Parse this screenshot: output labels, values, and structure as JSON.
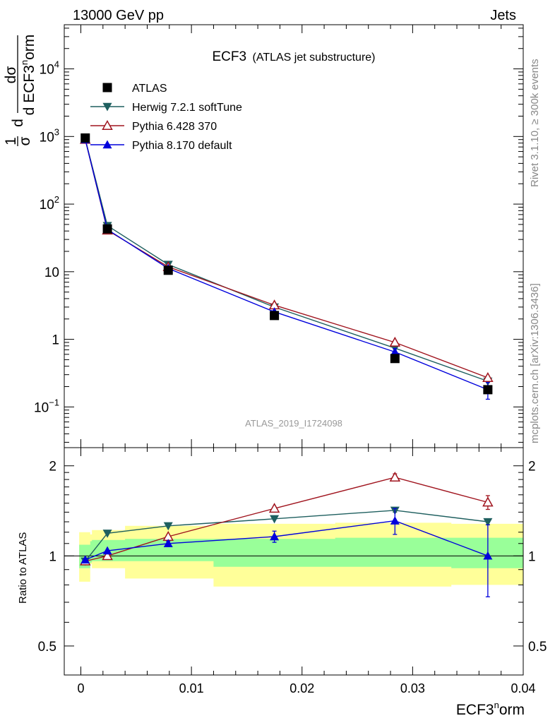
{
  "header": {
    "energy": "13000 GeV pp",
    "process": "Jets",
    "title_main": "ECF3",
    "title_sub": "(ATLAS jet substructure)",
    "analysis_id": "ATLAS_2019_I1724098",
    "side_rivet": "Rivet 3.1.10, ≥ 300k events",
    "side_mcplots": "mcplots.cern.ch [arXiv:1306.3436]"
  },
  "axes": {
    "x_label_main": "ECF3",
    "x_label_sup": "n",
    "x_label_tail": "orm",
    "y_main_label": {
      "prefix_top": "1",
      "prefix_bot": "σ",
      "d_top": "d",
      "frac_top": "dσ",
      "frac_bot_main": "d ECF3",
      "frac_bot_sup": "n",
      "frac_bot_tail": "orm"
    },
    "y_ratio_label": "Ratio to ATLAS",
    "x_ticks": [
      "0",
      "0.01",
      "0.02",
      "0.03",
      "0.04"
    ],
    "y_main_ticks": [
      {
        "value": 10000,
        "base": "10",
        "exp": "4"
      },
      {
        "value": 1000,
        "base": "10",
        "exp": "3"
      },
      {
        "value": 100,
        "base": "10",
        "exp": "2"
      },
      {
        "value": 10,
        "base": "10",
        "exp": ""
      },
      {
        "value": 1,
        "base": "1",
        "exp": ""
      },
      {
        "value": 0.1,
        "base": "10",
        "exp": "−1"
      }
    ],
    "y_ratio_ticks": [
      {
        "value": 2,
        "label": "2"
      },
      {
        "value": 1,
        "label": "1"
      },
      {
        "value": 0.5,
        "label": "0.5"
      }
    ]
  },
  "chart_data": {
    "type": "scatter",
    "x_range": [
      -0.0015,
      0.04
    ],
    "y_main_range": [
      0.025,
      45000
    ],
    "y_main_scale": "log",
    "y_ratio_range": [
      0.4,
      2.3
    ],
    "y_ratio_scale": "log",
    "x_minor_step": 0.002,
    "legend_position": "top-left",
    "bin_edges": [
      0,
      0.001,
      0.004,
      0.012,
      0.023,
      0.0335,
      0.04
    ],
    "band_inner": [
      [
        0.91,
        1.09
      ],
      [
        0.95,
        1.12
      ],
      [
        0.96,
        1.13
      ],
      [
        0.96,
        1.14
      ],
      [
        0.92,
        1.14
      ],
      [
        0.92,
        1.15
      ],
      [
        0.91,
        1.15
      ]
    ],
    "band_outer": [
      [
        0.82,
        1.2
      ],
      [
        0.94,
        1.18
      ],
      [
        0.91,
        1.22
      ],
      [
        0.84,
        1.26
      ],
      [
        0.79,
        1.28
      ],
      [
        0.79,
        1.29
      ],
      [
        0.8,
        1.28
      ]
    ],
    "band_x": [
      -0.00015,
      0.00085,
      0.001,
      0.004,
      0.012,
      0.023,
      0.0335,
      0.04
    ],
    "series": [
      {
        "name": "ATLAS",
        "color": "#000000",
        "marker": "square",
        "x": [
          0.0004,
          0.0024,
          0.0079,
          0.0175,
          0.0284,
          0.0368
        ],
        "y": [
          950,
          43,
          10.5,
          2.25,
          0.52,
          0.18
        ],
        "y_err": [
          0,
          0,
          0,
          0,
          0,
          0
        ],
        "ratio": [
          1,
          1,
          1,
          1,
          1,
          1
        ],
        "ratio_err": [
          0,
          0,
          0,
          0,
          0,
          0
        ]
      },
      {
        "name": "Herwig 7.2.1 softTune",
        "color": "#1e5f5f",
        "marker": "triangle-down",
        "x": [
          0.0004,
          0.0024,
          0.0079,
          0.0175,
          0.0284,
          0.0368
        ],
        "y": [
          910,
          48,
          12.8,
          3.0,
          0.74,
          0.24
        ],
        "y_err": [
          0,
          0,
          0,
          0,
          0,
          0
        ],
        "ratio": [
          0.96,
          1.19,
          1.26,
          1.33,
          1.42,
          1.3
        ],
        "ratio_err": [
          0,
          0,
          0,
          0,
          0.02,
          0.03
        ]
      },
      {
        "name": "Pythia 6.428 370",
        "color": "#a0141e",
        "marker": "triangle-open",
        "x": [
          0.0004,
          0.0024,
          0.0079,
          0.0175,
          0.0284,
          0.0368
        ],
        "y": [
          900,
          41,
          11.8,
          3.2,
          0.9,
          0.27
        ],
        "y_err": [
          0,
          0,
          0,
          0,
          0,
          0
        ],
        "ratio": [
          0.96,
          1.0,
          1.16,
          1.44,
          1.83,
          1.51
        ],
        "ratio_err": [
          0,
          0,
          0,
          0,
          0.05,
          0.08
        ]
      },
      {
        "name": "Pythia 8.170 default",
        "color": "#0000dc",
        "marker": "triangle-up",
        "x": [
          0.0004,
          0.0024,
          0.0079,
          0.0175,
          0.0284,
          0.0368
        ],
        "y": [
          900,
          42,
          11.2,
          2.55,
          0.65,
          0.18
        ],
        "y_err": [
          0,
          0,
          0,
          0,
          0.08,
          0.05
        ],
        "ratio": [
          0.97,
          1.04,
          1.1,
          1.16,
          1.31,
          1.0
        ],
        "ratio_err": [
          0,
          0,
          0.02,
          0.05,
          0.13,
          0.27
        ]
      }
    ]
  },
  "colors": {
    "band_inner": "#99ff99",
    "band_outer": "#ffff99"
  }
}
